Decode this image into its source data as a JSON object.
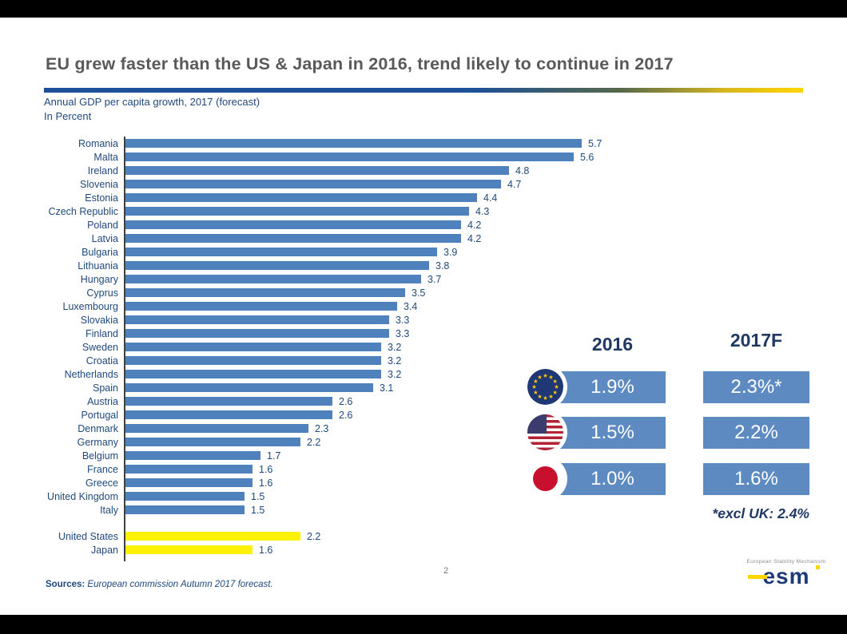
{
  "slide": {
    "title": "EU grew faster than the US & Japan in 2016, trend likely to continue in 2017",
    "subtitle_line1": "Annual GDP per capita growth, 2017 (forecast)",
    "subtitle_line2": "In Percent",
    "page_number": "2",
    "sources_label": "Sources:",
    "sources_text": "European commission Autumn 2017 forecast."
  },
  "chart_data": {
    "type": "bar",
    "orientation": "horizontal",
    "title": "Annual GDP per capita growth, 2017 (forecast)",
    "value_unit": "percent",
    "xlim": [
      0,
      6
    ],
    "colors": {
      "eu": "#4F81BD",
      "non_eu": "#FFF200"
    },
    "bars": [
      {
        "label": "Romania",
        "value": 5.7,
        "group": "eu"
      },
      {
        "label": "Malta",
        "value": 5.6,
        "group": "eu"
      },
      {
        "label": "Ireland",
        "value": 4.8,
        "group": "eu"
      },
      {
        "label": "Slovenia",
        "value": 4.7,
        "group": "eu"
      },
      {
        "label": "Estonia",
        "value": 4.4,
        "group": "eu"
      },
      {
        "label": "Czech Republic",
        "value": 4.3,
        "group": "eu"
      },
      {
        "label": "Poland",
        "value": 4.2,
        "group": "eu"
      },
      {
        "label": "Latvia",
        "value": 4.2,
        "group": "eu"
      },
      {
        "label": "Bulgaria",
        "value": 3.9,
        "group": "eu"
      },
      {
        "label": "Lithuania",
        "value": 3.8,
        "group": "eu"
      },
      {
        "label": "Hungary",
        "value": 3.7,
        "group": "eu"
      },
      {
        "label": "Cyprus",
        "value": 3.5,
        "group": "eu"
      },
      {
        "label": "Luxembourg",
        "value": 3.4,
        "group": "eu"
      },
      {
        "label": "Slovakia",
        "value": 3.3,
        "group": "eu"
      },
      {
        "label": "Finland",
        "value": 3.3,
        "group": "eu"
      },
      {
        "label": "Sweden",
        "value": 3.2,
        "group": "eu"
      },
      {
        "label": "Croatia",
        "value": 3.2,
        "group": "eu"
      },
      {
        "label": "Netherlands",
        "value": 3.2,
        "group": "eu"
      },
      {
        "label": "Spain",
        "value": 3.1,
        "group": "eu"
      },
      {
        "label": "Austria",
        "value": 2.6,
        "group": "eu"
      },
      {
        "label": "Portugal",
        "value": 2.6,
        "group": "eu"
      },
      {
        "label": "Denmark",
        "value": 2.3,
        "group": "eu"
      },
      {
        "label": "Germany",
        "value": 2.2,
        "group": "eu"
      },
      {
        "label": "Belgium",
        "value": 1.7,
        "group": "eu"
      },
      {
        "label": "France",
        "value": 1.6,
        "group": "eu"
      },
      {
        "label": "Greece",
        "value": 1.6,
        "group": "eu"
      },
      {
        "label": "United Kingdom",
        "value": 1.5,
        "group": "eu"
      },
      {
        "label": "Italy",
        "value": 1.5,
        "group": "eu"
      },
      {
        "label": "United States",
        "value": 2.2,
        "group": "non_eu",
        "gap_before": true
      },
      {
        "label": "Japan",
        "value": 1.6,
        "group": "non_eu"
      }
    ]
  },
  "summary": {
    "col_headers": [
      "2016",
      "2017F"
    ],
    "rows": [
      {
        "region": "European Union",
        "flag": "eu",
        "y2016": "1.9%",
        "y2017f": "2.3%*"
      },
      {
        "region": "United States",
        "flag": "us",
        "y2016": "1.5%",
        "y2017f": "2.2%"
      },
      {
        "region": "Japan",
        "flag": "japan",
        "y2016": "1.0%",
        "y2017f": "1.6%"
      }
    ],
    "footnote": "*excl UK: 2.4%"
  },
  "logo": {
    "tagline": "European Stability Mechanism",
    "wordmark": "esm"
  },
  "colors": {
    "eu_bar": "#4F81BD",
    "highlight_bar": "#FFF200",
    "summary_bar": "#5E8AC2",
    "label_text": "#1F497D",
    "header_text": "#1F3864",
    "title_text": "#595959",
    "eu_flag_blue": "#1F3875",
    "eu_flag_star": "#FFCC00",
    "us_flag_red": "#B22234",
    "us_flag_blue": "#3C3B6E",
    "japan_flag_red": "#C8102E"
  }
}
